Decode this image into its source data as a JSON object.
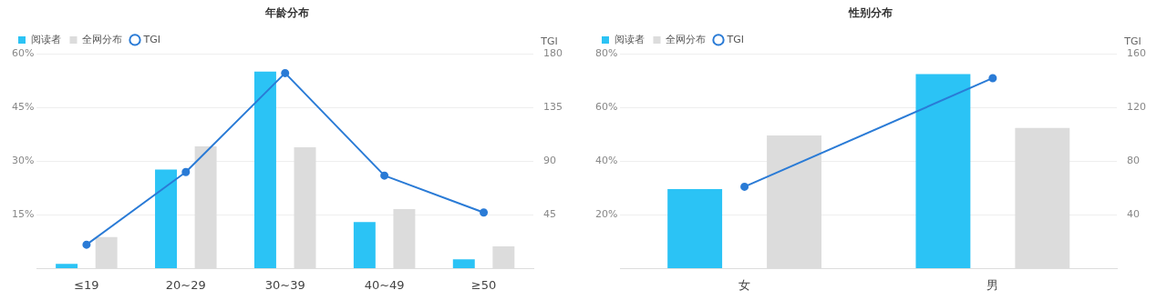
{
  "chart_data": [
    {
      "type": "bar",
      "title": "年龄分布",
      "categories": [
        "≤19",
        "20~29",
        "30~39",
        "40~49",
        "≥50"
      ],
      "y2label": "TGI",
      "legend": "top left",
      "grid": "y",
      "marker": "circle",
      "ylim": [
        0,
        60
      ],
      "yticks": [
        {
          "value": 0,
          "label": null
        },
        {
          "value": 15,
          "label": "15%"
        },
        {
          "value": 30,
          "label": "30%"
        },
        {
          "value": 45,
          "label": "45%"
        },
        {
          "value": 60,
          "label": "60%"
        }
      ],
      "y2lim": [
        0,
        180
      ],
      "y2ticks": [
        45,
        90,
        135,
        180
      ],
      "series": [
        {
          "name": "阅读者",
          "color": "#2bc3f5",
          "values": [
            1.3,
            27.7,
            55.1,
            13,
            2.6
          ]
        },
        {
          "name": "全网分布",
          "color": "#dcdcdc",
          "values": [
            8.8,
            34.2,
            33.9,
            16.6,
            6.2
          ]
        },
        {
          "name": "TGI",
          "type": "line",
          "axis": "y2",
          "color": "#2a7bd6",
          "values": [
            20,
            81,
            164,
            78,
            47
          ]
        }
      ]
    },
    {
      "type": "bar",
      "title": "性别分布",
      "categories": [
        "女",
        "男"
      ],
      "y2label": "TGI",
      "legend": "top left",
      "grid": "y",
      "marker": "circle",
      "ylim": [
        0,
        80
      ],
      "yticks": [
        {
          "value": 0,
          "label": null
        },
        {
          "value": 20,
          "label": "20%"
        },
        {
          "value": 40,
          "label": "40%"
        },
        {
          "value": 60,
          "label": "60%"
        },
        {
          "value": 80,
          "label": "80%"
        }
      ],
      "y2lim": [
        0,
        160
      ],
      "y2ticks": [
        40,
        80,
        120,
        160
      ],
      "series": [
        {
          "name": "阅读者",
          "color": "#2bc3f5",
          "values": [
            29.6,
            72.5
          ]
        },
        {
          "name": "全网分布",
          "color": "#dcdcdc",
          "values": [
            49.6,
            52.4
          ]
        },
        {
          "name": "TGI",
          "type": "line",
          "axis": "y2",
          "color": "#2a7bd6",
          "values": [
            61,
            142
          ]
        }
      ]
    }
  ]
}
